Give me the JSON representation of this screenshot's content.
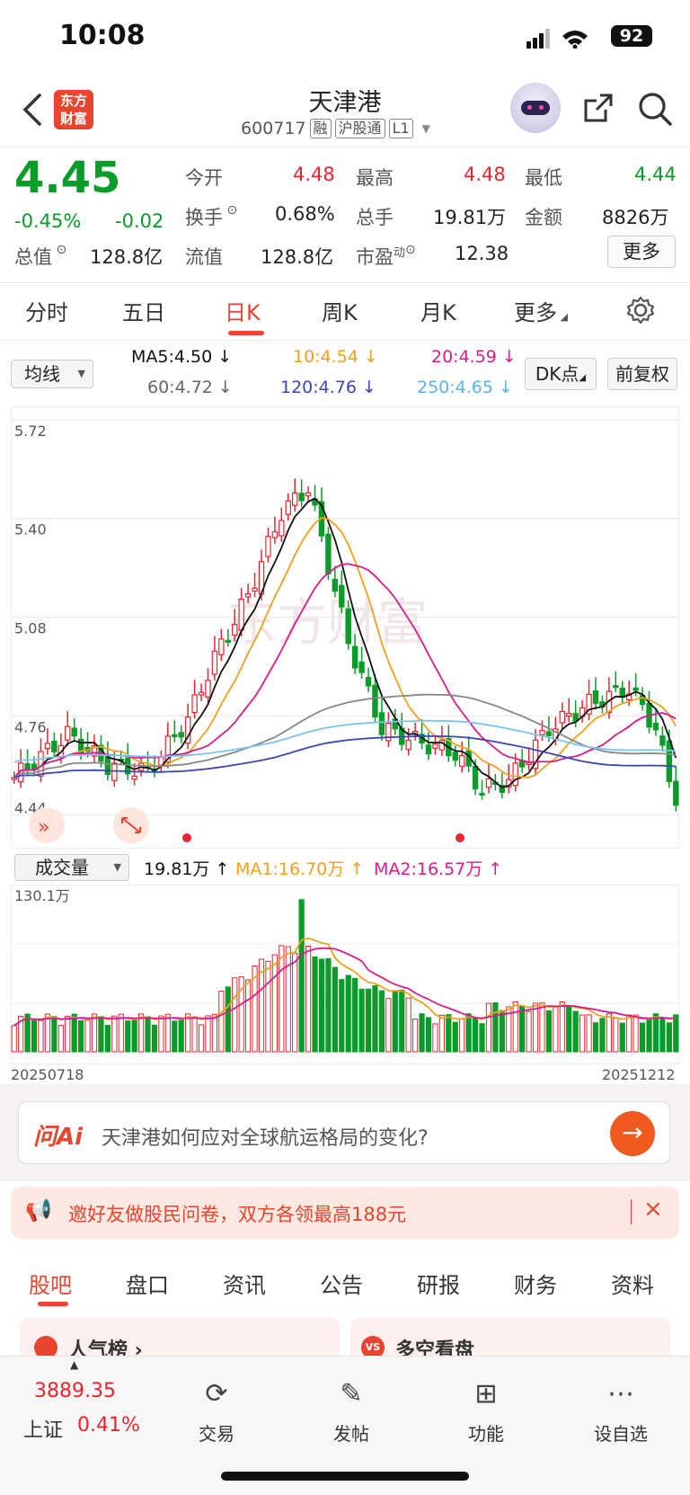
{
  "status": {
    "time": "10:08",
    "battery": "92"
  },
  "header": {
    "logo_text": "东方\n财富",
    "name": "天津港",
    "code": "600717",
    "tags": [
      "融",
      "沪股通",
      "L1"
    ]
  },
  "quote": {
    "price": "4.45",
    "change_pct": "-0.45%",
    "change": "-0.02",
    "open_label": "今开",
    "open": "4.48",
    "high_label": "最高",
    "high": "4.48",
    "low_label": "最低",
    "low": "4.44",
    "turnover_label": "换手",
    "turnover": "0.68%",
    "volume_label": "总手",
    "volume": "19.81万",
    "amount_label": "金额",
    "amount": "8826万",
    "mktcap_label": "总值",
    "mktcap": "128.8亿",
    "float_label": "流值",
    "float": "128.8亿",
    "pe_label": "市盈",
    "pe_sup": "动",
    "pe": "12.38",
    "more_label": "更多"
  },
  "tabs": [
    "分时",
    "五日",
    "日K",
    "周K",
    "月K",
    "更多"
  ],
  "active_tab": 2,
  "ma_legend": {
    "selector": "均线",
    "ma5": "MA5:4.50",
    "ma10": "10:4.54",
    "ma20": "20:4.59",
    "ma60": "60:4.72",
    "ma120": "120:4.76",
    "ma250": "250:4.65",
    "dk_label": "DK点",
    "fq_label": "前复权"
  },
  "chart_data": {
    "type": "candlestick",
    "y_ticks": [
      "5.72",
      "5.40",
      "5.08",
      "4.76",
      "4.44"
    ],
    "ylim": [
      4.4,
      5.74
    ],
    "ma_colors": {
      "ma5": "#111111",
      "ma10": "#f0a020",
      "ma20": "#d81b8f",
      "ma60": "#888888",
      "ma120": "#3a46b8",
      "ma250": "#7ac4f0"
    },
    "up_color": "#e8252e",
    "down_color": "#0a9c28",
    "volume": {
      "selector": "成交量",
      "vol": "19.81万",
      "ma1": "MA1:16.70万",
      "ma2": "MA2:16.57万",
      "max_label": "130.1万",
      "ylim": [
        0,
        130.1
      ]
    },
    "x_start": "20250718",
    "x_end": "20251212"
  },
  "ai": {
    "label": "问Ai",
    "question": "天津港如何应对全球航运格局的变化?"
  },
  "banner": {
    "text": "邀好友做股民问卷，双方各领最高188元"
  },
  "section_tabs": [
    "股吧",
    "盘口",
    "资讯",
    "公告",
    "研报",
    "财务",
    "资料"
  ],
  "section_cards": [
    "人气榜",
    "多空看盘"
  ],
  "bottom_nav": {
    "index_value": "3889.35",
    "index_name": "上证",
    "index_change": "0.41%",
    "items": [
      "交易",
      "发帖",
      "功能",
      "设自选"
    ]
  }
}
